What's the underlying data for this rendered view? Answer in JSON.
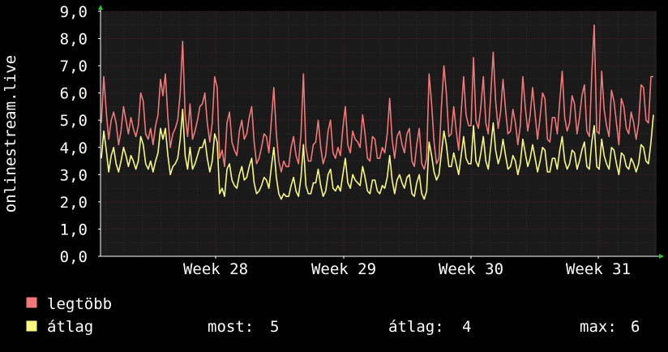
{
  "chart_data": {
    "type": "line",
    "ylabel": "onlinestream.live",
    "ylim": [
      0,
      9
    ],
    "y_ticks": [
      "0,0",
      "1,0",
      "2,0",
      "3,0",
      "4,0",
      "5,0",
      "6,0",
      "7,0",
      "8,0",
      "9,0"
    ],
    "x_labels": [
      "Week 28",
      "Week 29",
      "Week 30",
      "Week 31"
    ],
    "grid": true,
    "legend_placement": "bottom-left",
    "colors": {
      "background": "#000000",
      "plot_background": "#1a1a1a",
      "grid_major": "#5a1e1e",
      "grid_minor": "#2e2e2e",
      "axis": "#ffffff",
      "arrow": "#22cc22"
    },
    "series": [
      {
        "name": "legtöbb",
        "color": "#f07878",
        "values": [
          4.9,
          6.6,
          5.3,
          4.3,
          5.0,
          5.3,
          4.9,
          4.1,
          4.6,
          5.5,
          5.0,
          4.5,
          5.1,
          4.7,
          4.4,
          4.8,
          6.0,
          5.7,
          4.5,
          4.3,
          4.7,
          4.1,
          4.8,
          5.2,
          6.5,
          5.9,
          6.7,
          5.1,
          4.0,
          4.5,
          4.7,
          5.0,
          6.0,
          7.9,
          5.2,
          4.4,
          5.6,
          4.3,
          4.6,
          5.0,
          5.5,
          5.6,
          6.0,
          4.9,
          4.2,
          4.9,
          6.6,
          6.2,
          3.6,
          3.9,
          3.3,
          4.9,
          5.3,
          4.2,
          3.9,
          3.7,
          4.6,
          5.0,
          4.3,
          4.5,
          5.1,
          5.5,
          4.2,
          3.4,
          3.6,
          4.0,
          4.5,
          4.4,
          3.8,
          5.0,
          6.2,
          4.5,
          3.5,
          3.1,
          3.5,
          3.3,
          3.3,
          4.0,
          4.4,
          3.7,
          3.4,
          4.5,
          6.7,
          4.0,
          3.5,
          3.5,
          4.1,
          4.2,
          5.0,
          4.0,
          3.4,
          3.7,
          4.6,
          5.0,
          3.8,
          3.6,
          4.0,
          3.7,
          4.7,
          5.5,
          4.1,
          3.8,
          4.6,
          4.3,
          4.2,
          4.0,
          5.2,
          4.5,
          3.6,
          3.5,
          4.4,
          4.3,
          3.6,
          3.6,
          4.0,
          3.8,
          4.5,
          5.8,
          4.3,
          3.6,
          4.4,
          4.6,
          4.1,
          3.8,
          4.5,
          4.7,
          3.5,
          3.3,
          4.1,
          4.7,
          3.4,
          3.2,
          3.6,
          6.7,
          5.6,
          4.2,
          3.4,
          3.6,
          5.5,
          7.0,
          6.0,
          4.4,
          4.5,
          5.5,
          4.6,
          3.9,
          5.3,
          6.6,
          5.2,
          4.8,
          4.8,
          7.3,
          5.0,
          4.7,
          5.5,
          6.6,
          4.9,
          4.5,
          5.9,
          7.5,
          5.7,
          4.7,
          5.3,
          6.5,
          5.4,
          4.5,
          4.6,
          5.4,
          4.9,
          4.1,
          4.8,
          6.6,
          5.5,
          4.6,
          5.2,
          6.2,
          5.2,
          4.3,
          5.1,
          6.0,
          5.8,
          4.3,
          4.2,
          5.1,
          5.1,
          4.5,
          5.7,
          6.8,
          5.1,
          4.6,
          4.9,
          5.9,
          5.6,
          4.5,
          5.1,
          5.9,
          6.3,
          4.6,
          4.4,
          6.7,
          8.5,
          4.6,
          4.5,
          6.8,
          5.4,
          4.8,
          4.4,
          6.1,
          5.7,
          4.9,
          4.1,
          5.8,
          5.5,
          4.7,
          4.5,
          5.3,
          4.9,
          4.3,
          4.9,
          6.3,
          6.2,
          5.0,
          4.9,
          6.6,
          6.6
        ]
      },
      {
        "name": "átlag",
        "color": "#f8f880",
        "values": [
          3.6,
          4.6,
          3.9,
          3.1,
          3.7,
          4.0,
          3.4,
          3.1,
          3.5,
          4.0,
          3.7,
          3.3,
          3.7,
          3.5,
          3.2,
          3.5,
          4.4,
          4.1,
          3.4,
          3.2,
          3.5,
          3.1,
          3.5,
          3.8,
          4.7,
          4.3,
          4.7,
          3.7,
          3.0,
          3.3,
          3.4,
          3.6,
          4.3,
          5.4,
          3.7,
          3.2,
          4.0,
          3.2,
          3.4,
          3.7,
          4.0,
          4.0,
          4.3,
          3.6,
          3.1,
          3.5,
          4.5,
          4.2,
          2.3,
          2.5,
          2.2,
          3.2,
          3.4,
          2.8,
          2.6,
          2.5,
          3.0,
          3.3,
          2.8,
          2.9,
          3.3,
          3.6,
          2.7,
          2.3,
          2.4,
          2.6,
          2.9,
          2.8,
          2.5,
          3.3,
          4.0,
          2.9,
          2.3,
          2.1,
          2.3,
          2.2,
          2.2,
          2.6,
          2.9,
          2.4,
          2.2,
          2.9,
          4.1,
          2.6,
          2.3,
          2.3,
          2.7,
          2.7,
          3.2,
          2.6,
          2.2,
          2.4,
          3.0,
          3.2,
          2.5,
          2.4,
          2.6,
          2.4,
          3.0,
          3.6,
          2.7,
          2.5,
          3.0,
          2.8,
          2.7,
          2.6,
          3.3,
          2.9,
          2.4,
          2.3,
          2.8,
          2.8,
          2.4,
          2.3,
          2.6,
          2.5,
          2.9,
          3.7,
          2.8,
          2.3,
          2.8,
          3.0,
          2.7,
          2.5,
          2.9,
          3.0,
          2.3,
          2.2,
          2.7,
          3.0,
          2.3,
          2.1,
          2.4,
          4.2,
          3.7,
          3.1,
          2.8,
          3.0,
          3.8,
          4.6,
          4.1,
          3.3,
          3.3,
          3.8,
          3.4,
          3.0,
          3.7,
          4.4,
          3.6,
          3.4,
          3.4,
          4.8,
          3.5,
          3.3,
          3.8,
          4.4,
          3.5,
          3.2,
          4.0,
          4.9,
          3.9,
          3.4,
          3.7,
          4.3,
          3.7,
          3.2,
          3.3,
          3.7,
          3.5,
          3.0,
          3.4,
          4.3,
          3.8,
          3.3,
          3.6,
          4.1,
          3.6,
          3.1,
          3.5,
          4.0,
          3.9,
          3.1,
          3.1,
          3.6,
          3.6,
          3.2,
          3.9,
          4.4,
          3.5,
          3.2,
          3.4,
          3.9,
          3.8,
          3.2,
          3.5,
          3.9,
          4.2,
          3.3,
          3.2,
          4.2,
          4.8,
          3.3,
          3.2,
          4.3,
          3.7,
          3.4,
          3.2,
          4.0,
          3.9,
          3.4,
          3.0,
          3.8,
          3.7,
          3.3,
          3.2,
          3.6,
          3.4,
          3.1,
          3.4,
          4.1,
          4.0,
          3.5,
          3.4,
          4.2,
          5.2
        ]
      }
    ]
  },
  "legend": {
    "items": [
      {
        "label": "legtöbb",
        "color": "#f07878"
      },
      {
        "label": "átlag",
        "color": "#f8f880"
      }
    ],
    "stats": [
      {
        "label": "most:",
        "value": "5"
      },
      {
        "label": "átlag:",
        "value": "4"
      },
      {
        "label": "max:",
        "value": "6"
      }
    ]
  }
}
